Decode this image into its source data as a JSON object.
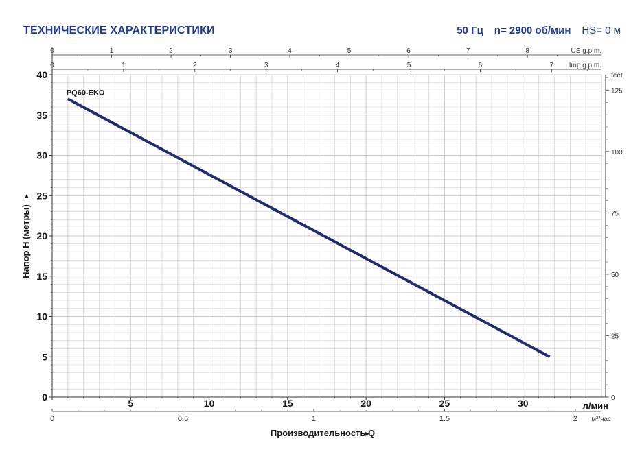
{
  "header": {
    "title": "ТЕХНИЧЕСКИЕ ХАРАКТЕРИСТИКИ",
    "frequency": "50 Гц",
    "speed": "n= 2900 об/мин",
    "hs": "HS= 0 м"
  },
  "colors": {
    "brand": "#1f3a93",
    "curve": "#1f2d6e",
    "grid": "#c8c8c8",
    "axis": "#333333"
  },
  "chart_data": {
    "type": "line",
    "title": "",
    "curve_label": "PQ60-EKO",
    "ylabel": "Напор  H (метры)",
    "ylabel_arrow": "▸",
    "xlabel": "Производительность  Q",
    "xlabel_arrow": "▸",
    "x_unit": "л/мин",
    "x2_unit": "м³/час",
    "right_unit": "feet",
    "us_unit": "US g.p.m.",
    "imp_unit": "Imp g.p.m.",
    "xlim": [
      0,
      35
    ],
    "ylim": [
      0,
      40
    ],
    "grid": true,
    "x_ticks": [
      "0",
      "5",
      "10",
      "15",
      "20",
      "25",
      "30"
    ],
    "y_ticks": [
      "0",
      "5",
      "10",
      "15",
      "20",
      "25",
      "30",
      "35",
      "40"
    ],
    "m3h_ticks": [
      "0",
      "0.5",
      "1",
      "1.5",
      "2"
    ],
    "feet_ticks": [
      "0",
      "25",
      "50",
      "75",
      "100",
      "125"
    ],
    "us_gpm_ticks": [
      "0",
      "1",
      "2",
      "3",
      "4",
      "5",
      "6",
      "7",
      "8"
    ],
    "imp_gpm_ticks": [
      "0",
      "1",
      "2",
      "3",
      "4",
      "5",
      "6",
      "7"
    ],
    "series": [
      {
        "name": "PQ60-EKO",
        "x": [
          1,
          31.7
        ],
        "y": [
          37,
          5
        ]
      }
    ]
  }
}
